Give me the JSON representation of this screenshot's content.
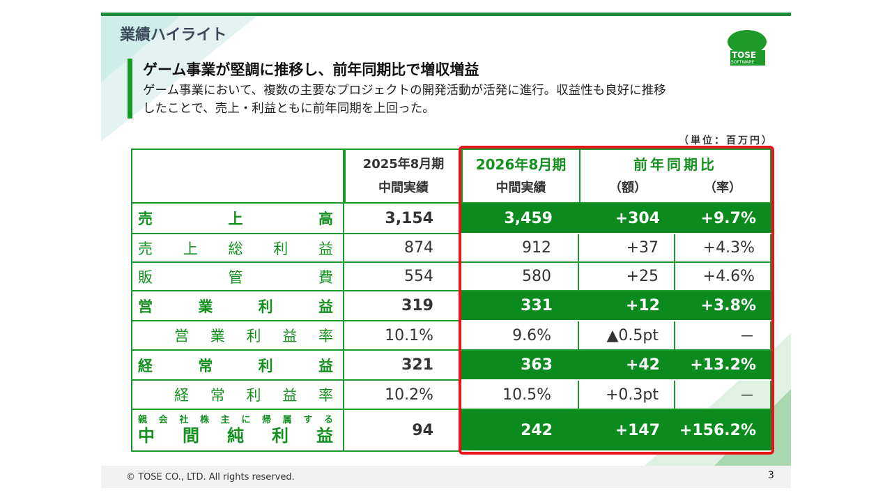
{
  "header": {
    "title": "業績ハイライト"
  },
  "logo": {
    "name": "TOSE",
    "sub": "SOFTWARE"
  },
  "headline": "ゲーム事業が堅調に推移し、前年同期比で増収増益",
  "body": [
    "ゲーム事業において、複数の主要なプロジェクトの開発活動が活発に進行。収益性も良好に推移",
    "したことで、売上・利益ともに前年同期を上回った。"
  ],
  "unit": "（単位：百万円）",
  "table": {
    "header": {
      "prev": [
        "2025年8月期",
        "中間実績"
      ],
      "curr": [
        "2026年8月期",
        "中間実績"
      ],
      "yoy": "前年同期比",
      "amount": "（額）",
      "rate": "（率）"
    },
    "rows": [
      {
        "label": "売上高",
        "values": [
          "3,154",
          "3,459",
          "+304",
          "+9.7%"
        ]
      },
      {
        "label": "売上総利益",
        "values": [
          "874",
          "912",
          "+37",
          "+4.3%"
        ]
      },
      {
        "label": "販管費",
        "values": [
          "554",
          "580",
          "+25",
          "+4.6%"
        ]
      },
      {
        "label": "営業利益",
        "values": [
          "319",
          "331",
          "+12",
          "+3.8%"
        ]
      },
      {
        "label": "営業利益率",
        "values": [
          "10.1%",
          "9.6%",
          "▲0.5pt",
          "－"
        ]
      },
      {
        "label": "経常利益",
        "values": [
          "321",
          "363",
          "+42",
          "+13.2%"
        ]
      },
      {
        "label": "経常利益率",
        "values": [
          "10.2%",
          "10.5%",
          "+0.3pt",
          "－"
        ]
      },
      {
        "note": "親会社株主に帰属する",
        "label": "中間純利益",
        "values": [
          "94",
          "242",
          "+147",
          "+156.2%"
        ]
      }
    ]
  },
  "footer": {
    "copyright": "© TOSE CO., LTD. All rights reserved.",
    "page": "3"
  }
}
